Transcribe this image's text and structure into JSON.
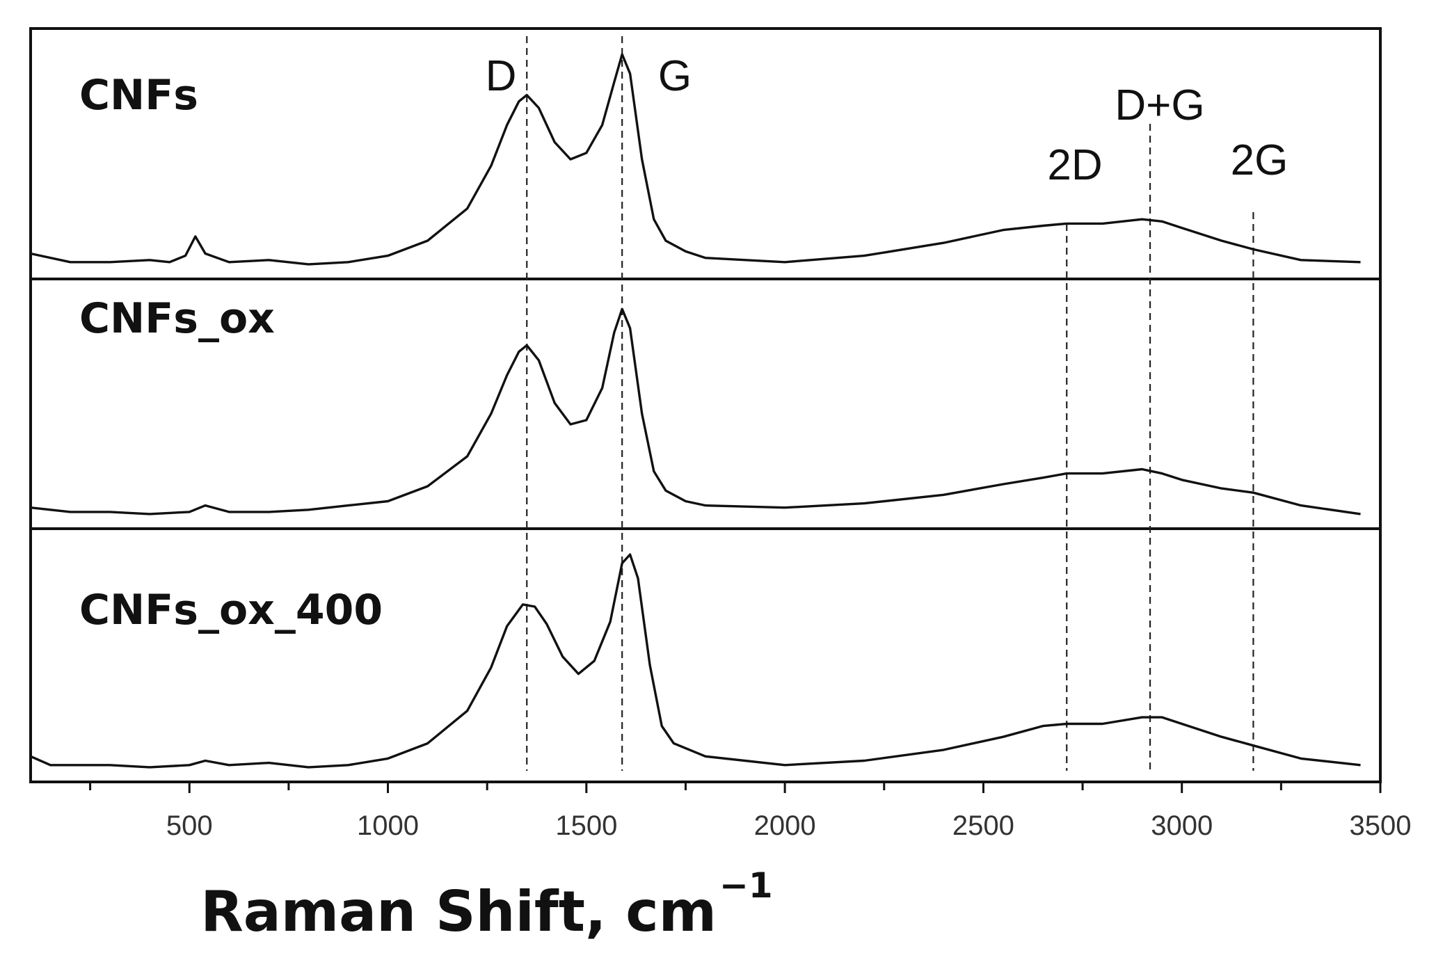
{
  "chart_data": {
    "type": "line",
    "xlabel": "Raman Shift, cm",
    "xlabel_superscript": "−1",
    "ylabel": "",
    "xlim": [
      100,
      3500
    ],
    "x_ticks": [
      500,
      1000,
      1500,
      2000,
      2500,
      3000,
      3500
    ],
    "x_tick_labels": [
      "500",
      "1000",
      "1500",
      "2000",
      "2500",
      "3000",
      "3500"
    ],
    "grid": false,
    "legend": "none",
    "panels_stacked": true,
    "peak_markers": [
      {
        "label": "D",
        "x": 1350
      },
      {
        "label": "G",
        "x": 1590
      },
      {
        "label": "2D",
        "x": 2710
      },
      {
        "label": "D+G",
        "x": 2920
      },
      {
        "label": "2G",
        "x": 3180
      }
    ],
    "series": [
      {
        "name": "CNFs",
        "points": [
          [
            100,
            0.06
          ],
          [
            200,
            0.02
          ],
          [
            300,
            0.02
          ],
          [
            400,
            0.03
          ],
          [
            450,
            0.02
          ],
          [
            490,
            0.05
          ],
          [
            515,
            0.14
          ],
          [
            540,
            0.06
          ],
          [
            600,
            0.02
          ],
          [
            700,
            0.03
          ],
          [
            800,
            0.01
          ],
          [
            900,
            0.02
          ],
          [
            1000,
            0.05
          ],
          [
            1100,
            0.12
          ],
          [
            1200,
            0.27
          ],
          [
            1260,
            0.47
          ],
          [
            1300,
            0.66
          ],
          [
            1330,
            0.77
          ],
          [
            1350,
            0.8
          ],
          [
            1380,
            0.74
          ],
          [
            1420,
            0.58
          ],
          [
            1460,
            0.5
          ],
          [
            1500,
            0.53
          ],
          [
            1540,
            0.66
          ],
          [
            1570,
            0.86
          ],
          [
            1590,
            0.99
          ],
          [
            1610,
            0.9
          ],
          [
            1640,
            0.5
          ],
          [
            1670,
            0.22
          ],
          [
            1700,
            0.12
          ],
          [
            1750,
            0.07
          ],
          [
            1800,
            0.04
          ],
          [
            2000,
            0.02
          ],
          [
            2200,
            0.05
          ],
          [
            2400,
            0.11
          ],
          [
            2550,
            0.17
          ],
          [
            2650,
            0.19
          ],
          [
            2710,
            0.2
          ],
          [
            2800,
            0.2
          ],
          [
            2900,
            0.22
          ],
          [
            2950,
            0.21
          ],
          [
            3000,
            0.18
          ],
          [
            3100,
            0.12
          ],
          [
            3180,
            0.08
          ],
          [
            3300,
            0.03
          ],
          [
            3450,
            0.02
          ]
        ]
      },
      {
        "name": "CNFs_ox",
        "points": [
          [
            100,
            0.04
          ],
          [
            200,
            0.02
          ],
          [
            300,
            0.02
          ],
          [
            400,
            0.01
          ],
          [
            500,
            0.02
          ],
          [
            540,
            0.05
          ],
          [
            600,
            0.02
          ],
          [
            700,
            0.02
          ],
          [
            800,
            0.03
          ],
          [
            900,
            0.05
          ],
          [
            1000,
            0.07
          ],
          [
            1100,
            0.14
          ],
          [
            1200,
            0.28
          ],
          [
            1260,
            0.48
          ],
          [
            1300,
            0.66
          ],
          [
            1330,
            0.77
          ],
          [
            1350,
            0.8
          ],
          [
            1380,
            0.73
          ],
          [
            1420,
            0.53
          ],
          [
            1460,
            0.43
          ],
          [
            1500,
            0.45
          ],
          [
            1540,
            0.6
          ],
          [
            1570,
            0.86
          ],
          [
            1590,
            0.97
          ],
          [
            1610,
            0.88
          ],
          [
            1640,
            0.48
          ],
          [
            1670,
            0.21
          ],
          [
            1700,
            0.12
          ],
          [
            1750,
            0.07
          ],
          [
            1800,
            0.05
          ],
          [
            2000,
            0.04
          ],
          [
            2200,
            0.06
          ],
          [
            2400,
            0.1
          ],
          [
            2550,
            0.15
          ],
          [
            2650,
            0.18
          ],
          [
            2710,
            0.2
          ],
          [
            2800,
            0.2
          ],
          [
            2900,
            0.22
          ],
          [
            2950,
            0.2
          ],
          [
            3000,
            0.17
          ],
          [
            3100,
            0.13
          ],
          [
            3180,
            0.11
          ],
          [
            3300,
            0.05
          ],
          [
            3450,
            0.01
          ]
        ]
      },
      {
        "name": "CNFs_ox_400",
        "points": [
          [
            100,
            0.06
          ],
          [
            150,
            0.02
          ],
          [
            300,
            0.02
          ],
          [
            400,
            0.01
          ],
          [
            500,
            0.02
          ],
          [
            540,
            0.04
          ],
          [
            600,
            0.02
          ],
          [
            700,
            0.03
          ],
          [
            800,
            0.01
          ],
          [
            900,
            0.02
          ],
          [
            1000,
            0.05
          ],
          [
            1100,
            0.12
          ],
          [
            1200,
            0.27
          ],
          [
            1260,
            0.47
          ],
          [
            1300,
            0.66
          ],
          [
            1340,
            0.76
          ],
          [
            1370,
            0.75
          ],
          [
            1400,
            0.67
          ],
          [
            1440,
            0.52
          ],
          [
            1480,
            0.44
          ],
          [
            1520,
            0.5
          ],
          [
            1560,
            0.68
          ],
          [
            1590,
            0.95
          ],
          [
            1610,
            0.99
          ],
          [
            1630,
            0.88
          ],
          [
            1660,
            0.48
          ],
          [
            1690,
            0.2
          ],
          [
            1720,
            0.12
          ],
          [
            1800,
            0.06
          ],
          [
            2000,
            0.02
          ],
          [
            2200,
            0.04
          ],
          [
            2400,
            0.09
          ],
          [
            2550,
            0.15
          ],
          [
            2650,
            0.2
          ],
          [
            2710,
            0.21
          ],
          [
            2800,
            0.21
          ],
          [
            2900,
            0.24
          ],
          [
            2950,
            0.24
          ],
          [
            3000,
            0.21
          ],
          [
            3100,
            0.15
          ],
          [
            3180,
            0.11
          ],
          [
            3300,
            0.05
          ],
          [
            3450,
            0.02
          ]
        ]
      }
    ]
  }
}
